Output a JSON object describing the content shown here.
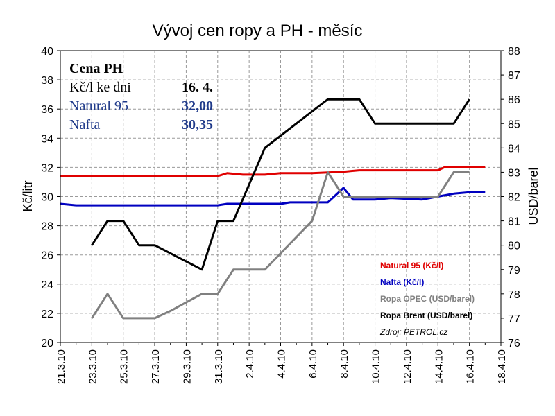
{
  "chart_data": {
    "type": "line",
    "title": "Vývoj cen ropy a PH - měsíc",
    "ylabel": "Kč/litr",
    "ylabel_right": "USD/barel",
    "ylim": [
      20,
      40
    ],
    "ylim_right": [
      76,
      88
    ],
    "yticks": [
      "20",
      "22",
      "24",
      "26",
      "28",
      "30",
      "32",
      "34",
      "36",
      "38",
      "40"
    ],
    "yticks_right": [
      "76",
      "77",
      "78",
      "79",
      "80",
      "81",
      "82",
      "83",
      "84",
      "85",
      "86",
      "87",
      "88"
    ],
    "xlim": [
      0,
      28
    ],
    "xticks": [
      {
        "label": "21.3.10",
        "x": 0
      },
      {
        "label": "23.3.10",
        "x": 2
      },
      {
        "label": "25.3.10",
        "x": 4
      },
      {
        "label": "27.3.10",
        "x": 6
      },
      {
        "label": "29.3.10",
        "x": 8
      },
      {
        "label": "31.3.10",
        "x": 10
      },
      {
        "label": "2.4.10",
        "x": 12
      },
      {
        "label": "4.4.10",
        "x": 14
      },
      {
        "label": "6.4.10",
        "x": 16
      },
      {
        "label": "8.4.10",
        "x": 18
      },
      {
        "label": "10.4.10",
        "x": 20
      },
      {
        "label": "12.4.10",
        "x": 22
      },
      {
        "label": "14.4.10",
        "x": 24
      },
      {
        "label": "16.4.10",
        "x": 26
      },
      {
        "label": "18.4.10",
        "x": 28
      }
    ],
    "grid": true,
    "series": [
      {
        "name": "Natural 95 (Kč/l)",
        "axis": "left",
        "color": "#e00000",
        "points": [
          [
            0,
            31.4
          ],
          [
            10,
            31.4
          ],
          [
            10.6,
            31.6
          ],
          [
            11.6,
            31.5
          ],
          [
            13,
            31.5
          ],
          [
            14,
            31.6
          ],
          [
            16,
            31.6
          ],
          [
            18,
            31.7
          ],
          [
            19,
            31.8
          ],
          [
            24,
            31.8
          ],
          [
            24.4,
            32.0
          ],
          [
            27,
            32.0
          ]
        ]
      },
      {
        "name": "Nafta (Kč/l)",
        "axis": "left",
        "color": "#0000c0",
        "points": [
          [
            0,
            29.5
          ],
          [
            1,
            29.4
          ],
          [
            10,
            29.4
          ],
          [
            10.6,
            29.5
          ],
          [
            14,
            29.5
          ],
          [
            14.6,
            29.6
          ],
          [
            17,
            29.6
          ],
          [
            18,
            30.6
          ],
          [
            18.6,
            29.8
          ],
          [
            20,
            29.8
          ],
          [
            21,
            29.9
          ],
          [
            23,
            29.8
          ],
          [
            24,
            30.0
          ],
          [
            25,
            30.2
          ],
          [
            26,
            30.3
          ],
          [
            27,
            30.3
          ]
        ]
      },
      {
        "name": "Ropa OPEC (USD/barel)",
        "axis": "right",
        "color": "#808080",
        "points": [
          [
            2,
            77
          ],
          [
            3,
            78
          ],
          [
            4,
            77
          ],
          [
            6,
            77
          ],
          [
            7,
            77.3
          ],
          [
            9,
            78
          ],
          [
            10,
            78
          ],
          [
            11,
            79
          ],
          [
            13,
            79
          ],
          [
            16,
            81
          ],
          [
            17,
            83
          ],
          [
            18,
            82
          ],
          [
            24,
            82
          ],
          [
            25,
            83
          ],
          [
            26,
            83
          ]
        ]
      },
      {
        "name": "Ropa Brent (USD/barel)",
        "axis": "right",
        "color": "#000000",
        "points": [
          [
            2,
            80
          ],
          [
            3,
            81
          ],
          [
            4,
            81
          ],
          [
            5,
            80
          ],
          [
            6,
            80
          ],
          [
            9,
            79
          ],
          [
            10,
            81
          ],
          [
            11,
            81
          ],
          [
            13,
            84
          ],
          [
            17,
            86
          ],
          [
            19,
            86
          ],
          [
            20,
            85
          ],
          [
            25,
            85
          ],
          [
            26,
            86
          ]
        ]
      }
    ],
    "source": "Zdroj: PETROL.cz"
  },
  "info_box": {
    "title": "Cena PH",
    "date_label": "Kč/l ke dni",
    "date_value": "16. 4.",
    "natural_label": "Natural 95",
    "natural_value": "32,00",
    "nafta_label": "Nafta",
    "nafta_value": "30,35"
  }
}
